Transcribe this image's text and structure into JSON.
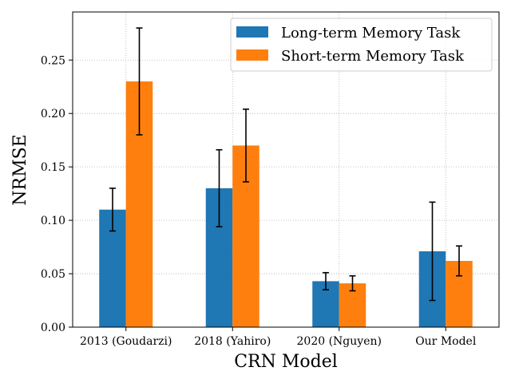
{
  "chart_data": {
    "type": "bar",
    "xlabel": "CRN Model",
    "ylabel": "NRMSE",
    "categories": [
      "2013 (Goudarzi)",
      "2018 (Yahiro)",
      "2020 (Nguyen)",
      "Our Model"
    ],
    "series": [
      {
        "name": "Long-term Memory Task",
        "color": "#1f77b4",
        "values": [
          0.11,
          0.13,
          0.043,
          0.071
        ],
        "errors": [
          0.02,
          0.036,
          0.008,
          0.046
        ]
      },
      {
        "name": "Short-term Memory Task",
        "color": "#ff7f0e",
        "values": [
          0.23,
          0.17,
          0.041,
          0.062
        ],
        "errors": [
          0.05,
          0.034,
          0.007,
          0.014
        ]
      }
    ],
    "ylim": [
      0,
      0.295
    ],
    "yticks": [
      "0.00",
      "0.05",
      "0.10",
      "0.15",
      "0.20",
      "0.25"
    ],
    "grid": true,
    "grid_style": "dotted",
    "legend_position": "top-right"
  }
}
